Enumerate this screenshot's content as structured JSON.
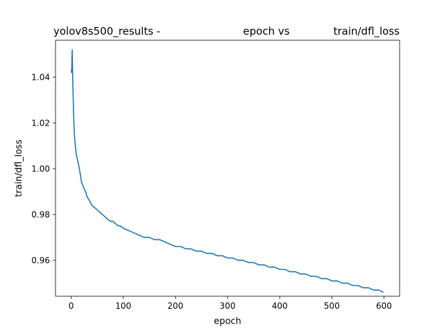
{
  "chart_data": {
    "type": "line",
    "title_parts": [
      "yolov8s500_results -",
      "epoch vs",
      "train/dfl_loss"
    ],
    "xlabel": "epoch",
    "ylabel": "train/dfl_loss",
    "xlim": [
      -30,
      630
    ],
    "ylim": [
      0.9443,
      1.0561
    ],
    "xticks": [
      0,
      100,
      200,
      300,
      400,
      500,
      600
    ],
    "yticks": [
      0.96,
      0.98,
      1.0,
      1.02,
      1.04
    ],
    "ytick_labels": [
      "0.96",
      "0.98",
      "1.00",
      "1.02",
      "1.04"
    ],
    "grid": false,
    "series": [
      {
        "color": "#1f77b4",
        "x": [
          0,
          1,
          2,
          3,
          4,
          5,
          6,
          8,
          10,
          12,
          15,
          18,
          20,
          22,
          25,
          28,
          30,
          35,
          40,
          45,
          50,
          55,
          60,
          65,
          70,
          75,
          80,
          85,
          90,
          95,
          100,
          110,
          120,
          130,
          140,
          150,
          160,
          170,
          180,
          190,
          200,
          210,
          220,
          230,
          240,
          250,
          260,
          270,
          280,
          290,
          300,
          310,
          320,
          330,
          340,
          350,
          360,
          370,
          380,
          390,
          400,
          410,
          420,
          430,
          440,
          450,
          460,
          470,
          480,
          490,
          500,
          510,
          520,
          530,
          540,
          550,
          560,
          570,
          580,
          590,
          599
        ],
        "y": [
          1.043,
          1.042,
          1.052,
          1.04,
          1.03,
          1.022,
          1.016,
          1.01,
          1.006,
          1.004,
          1.001,
          0.997,
          0.994,
          0.993,
          0.991,
          0.99,
          0.988,
          0.986,
          0.984,
          0.983,
          0.982,
          0.981,
          0.98,
          0.979,
          0.978,
          0.977,
          0.977,
          0.976,
          0.975,
          0.975,
          0.974,
          0.973,
          0.972,
          0.971,
          0.97,
          0.97,
          0.969,
          0.969,
          0.968,
          0.967,
          0.966,
          0.966,
          0.965,
          0.965,
          0.964,
          0.964,
          0.963,
          0.963,
          0.962,
          0.962,
          0.961,
          0.961,
          0.96,
          0.96,
          0.959,
          0.959,
          0.958,
          0.958,
          0.957,
          0.957,
          0.956,
          0.956,
          0.955,
          0.955,
          0.954,
          0.954,
          0.953,
          0.953,
          0.952,
          0.952,
          0.951,
          0.951,
          0.95,
          0.95,
          0.949,
          0.949,
          0.948,
          0.948,
          0.947,
          0.947,
          0.946
        ]
      }
    ]
  }
}
